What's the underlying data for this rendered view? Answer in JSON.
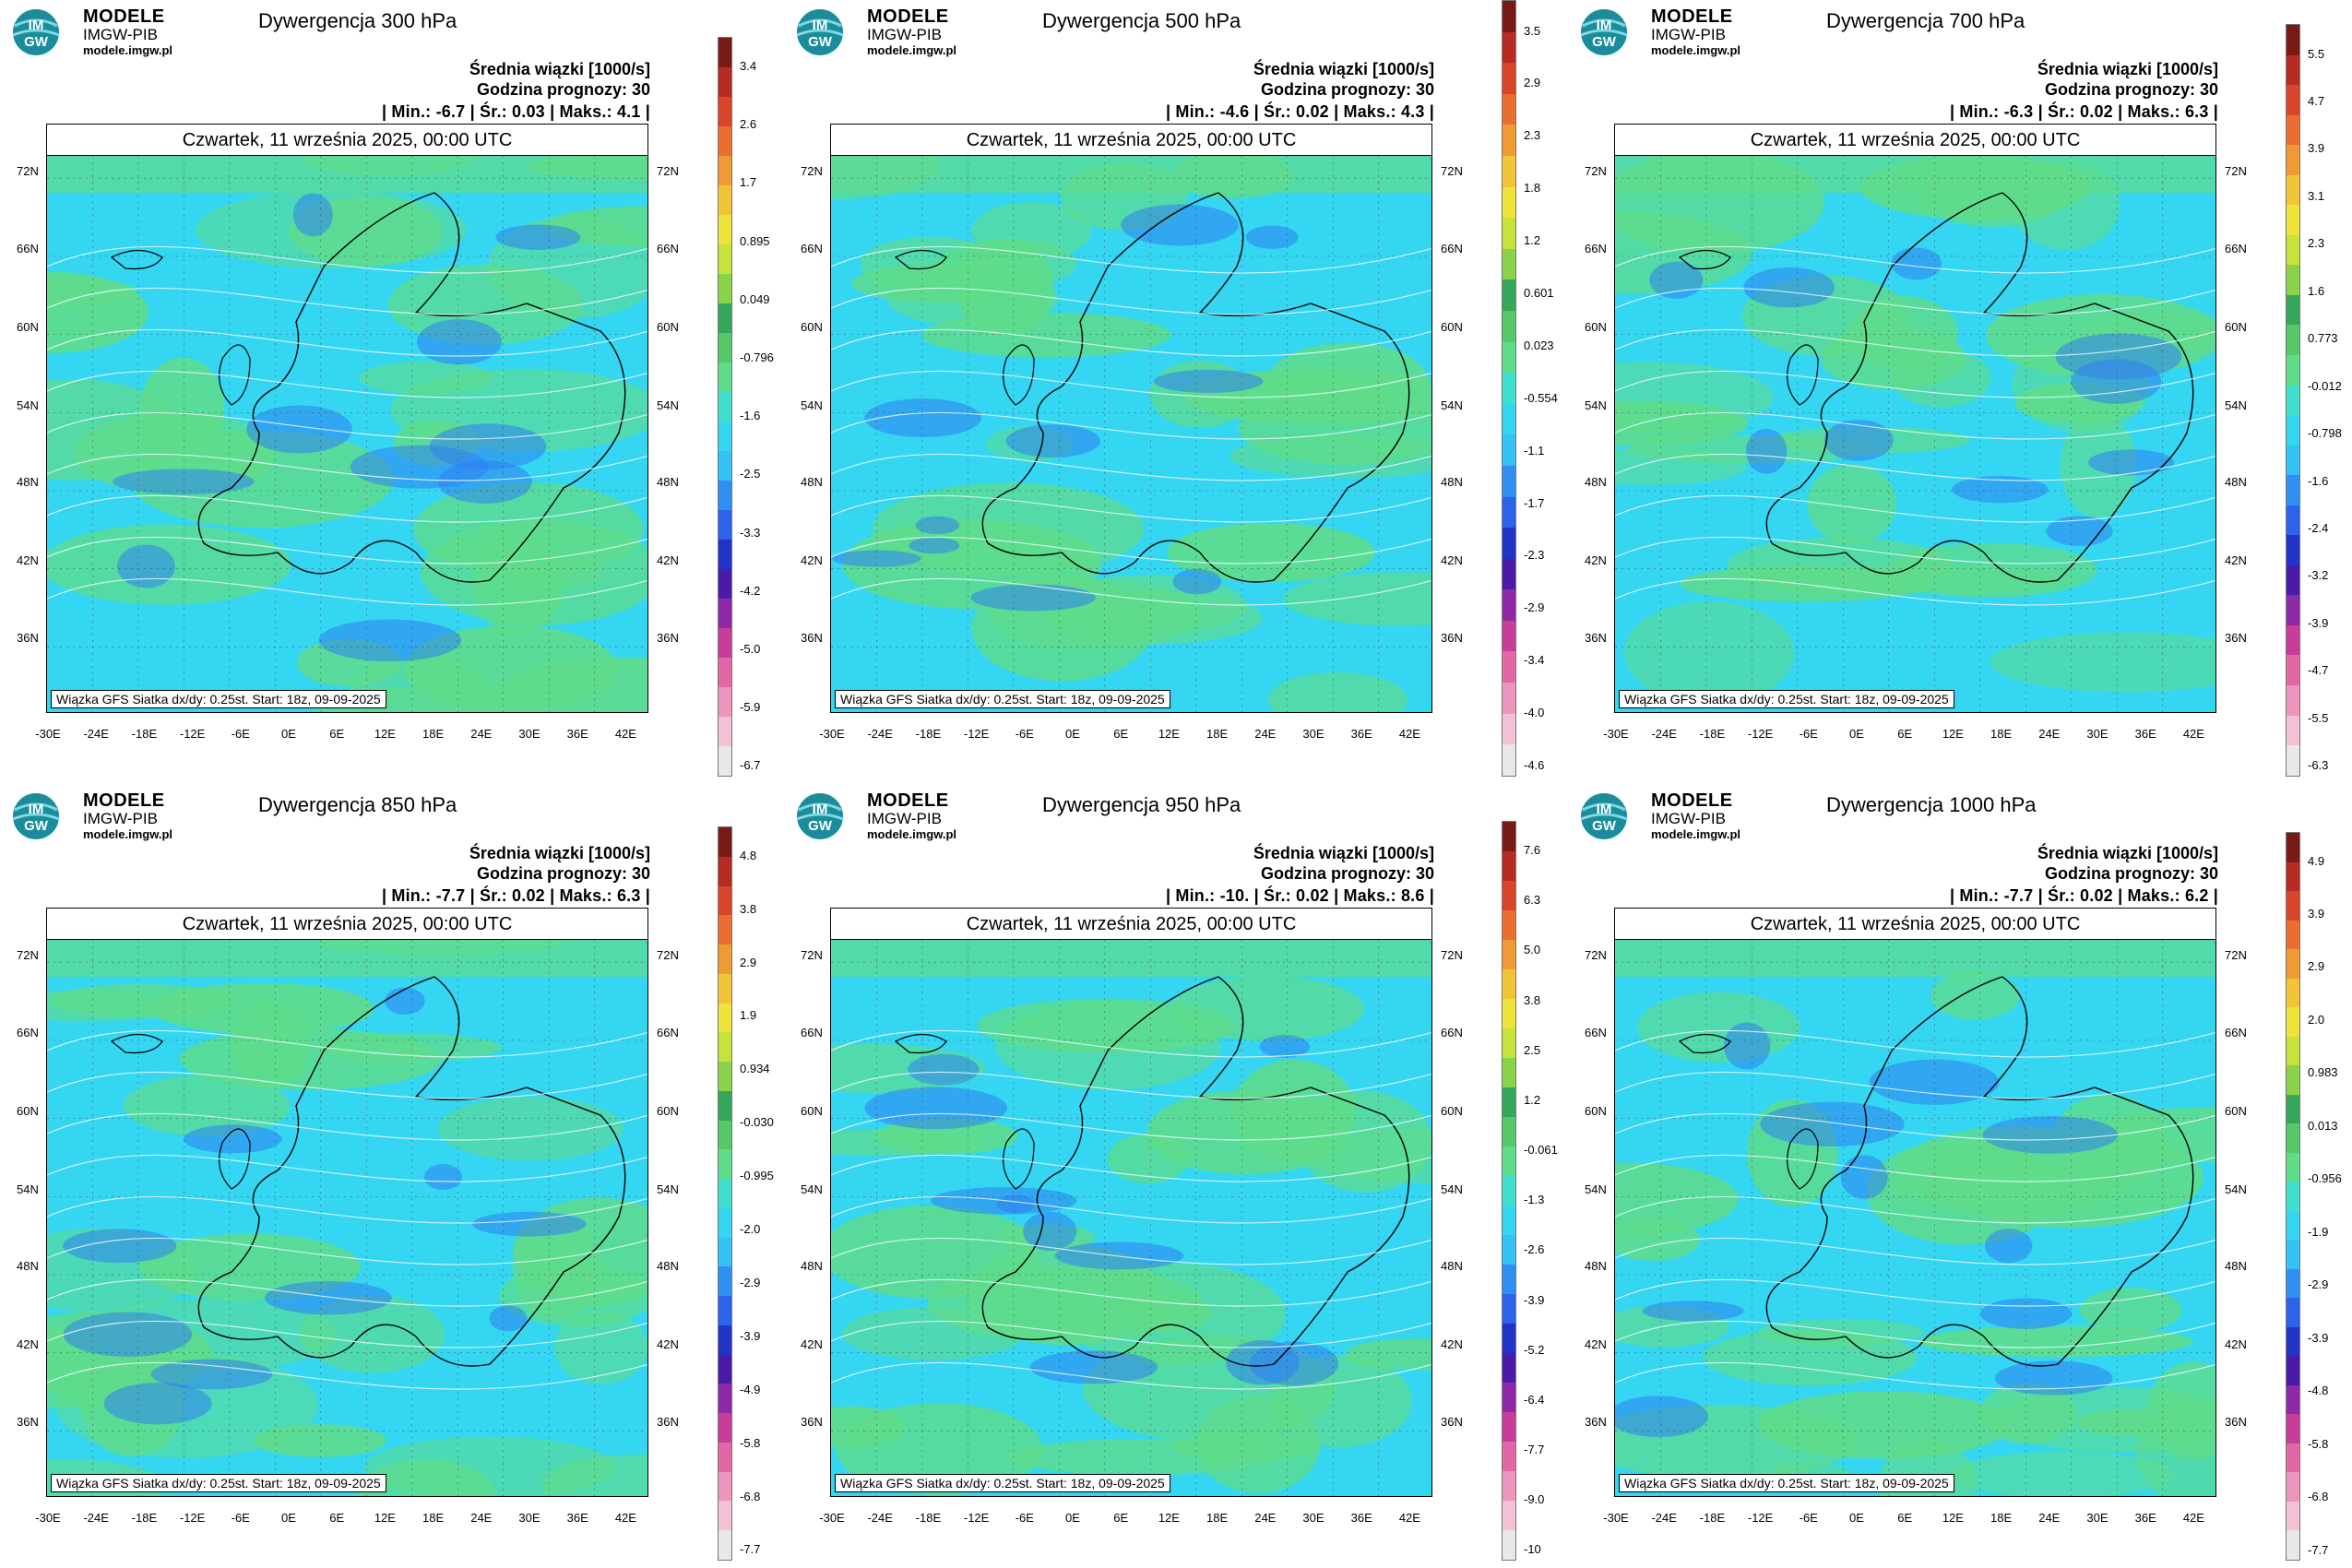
{
  "brand": {
    "line1": "MODELE",
    "line2": "IMGW-PIB",
    "line3": "modele.imgw.pl",
    "badge": "IM\nGW"
  },
  "common": {
    "info_label": "Średnia wiązki [1000/s]",
    "forecast_hour": "Godzina prognozy: 30",
    "date": "Czwartek, 11 września 2025, 00:00 UTC",
    "footnote": "Wiązka GFS Siatka dx/dy: 0.25st. Start: 18z, 09-09-2025",
    "lat_labels": [
      "72N",
      "66N",
      "60N",
      "54N",
      "48N",
      "42N",
      "36N"
    ],
    "lon_labels": [
      "-30E",
      "-24E",
      "-18E",
      "-12E",
      "-6E",
      "0E",
      "6E",
      "12E",
      "18E",
      "24E",
      "30E",
      "36E",
      "42E"
    ]
  },
  "colors": {
    "sea_cyan": "#34d6f2",
    "green": "#5fdc8a",
    "blue": "#2f7ff0",
    "contour": "#e8f4ff"
  },
  "palette": [
    "#e8e8e8",
    "#f3c1d6",
    "#ee95bd",
    "#e366a6",
    "#c83d97",
    "#8e2aa7",
    "#4a1ba8",
    "#2233c8",
    "#2b63ee",
    "#2f8ff2",
    "#34c1f3",
    "#34d6f2",
    "#3fe0d0",
    "#5fdc8a",
    "#57c86a",
    "#34a85a",
    "#8ad24a",
    "#c7e23a",
    "#efe43a",
    "#f2c437",
    "#f09a34",
    "#ea6e2f",
    "#d9452a",
    "#b82a24",
    "#7a1a17"
  ],
  "panels": [
    {
      "title": "Dywergencja 300 hPa",
      "stats": "| Min.:   -6.7 | Śr.:   0.03 | Maks.:   4.1 |",
      "scale": [
        "3.4",
        "2.6",
        "1.7",
        "0.895",
        "0.049",
        "-0.796",
        "-1.6",
        "-2.5",
        "-3.3",
        "-4.2",
        "-5.0",
        "-5.9",
        "-6.7"
      ]
    },
    {
      "title": "Dywergencja 500 hPa",
      "stats": "| Min.:   -4.6 | Śr.:   0.02 | Maks.:   4.3 |",
      "scale": [
        "3.5",
        "2.9",
        "2.3",
        "1.8",
        "1.2",
        "0.601",
        "0.023",
        "-0.554",
        "-1.1",
        "-1.7",
        "-2.3",
        "-2.9",
        "-3.4",
        "-4.0",
        "-4.6"
      ]
    },
    {
      "title": "Dywergencja 700 hPa",
      "stats": "| Min.:   -6.3 | Śr.:   0.02 | Maks.:   6.3 |",
      "scale": [
        "5.5",
        "4.7",
        "3.9",
        "3.1",
        "2.3",
        "1.6",
        "0.773",
        "-0.012",
        "-0.798",
        "-1.6",
        "-2.4",
        "-3.2",
        "-3.9",
        "-4.7",
        "-5.5",
        "-6.3"
      ]
    },
    {
      "title": "Dywergencja 850 hPa",
      "stats": "| Min.:   -7.7 | Śr.:   0.02 | Maks.:   6.3 |",
      "scale": [
        "4.8",
        "3.8",
        "2.9",
        "1.9",
        "0.934",
        "-0.030",
        "-0.995",
        "-2.0",
        "-2.9",
        "-3.9",
        "-4.9",
        "-5.8",
        "-6.8",
        "-7.7"
      ]
    },
    {
      "title": "Dywergencja 950 hPa",
      "stats": "| Min.:   -10. | Śr.:   0.02 | Maks.:   8.6 |",
      "scale": [
        "7.6",
        "6.3",
        "5.0",
        "3.8",
        "2.5",
        "1.2",
        "-0.061",
        "-1.3",
        "-2.6",
        "-3.9",
        "-5.2",
        "-6.4",
        "-7.7",
        "-9.0",
        "-10"
      ]
    },
    {
      "title": "Dywergencja 1000 hPa",
      "stats": "| Min.:   -7.7 | Śr.:   0.02 | Maks.:   6.2 |",
      "scale": [
        "4.9",
        "3.9",
        "2.9",
        "2.0",
        "0.983",
        "0.013",
        "-0.956",
        "-1.9",
        "-2.9",
        "-3.9",
        "-4.8",
        "-5.8",
        "-6.8",
        "-7.7"
      ]
    }
  ]
}
